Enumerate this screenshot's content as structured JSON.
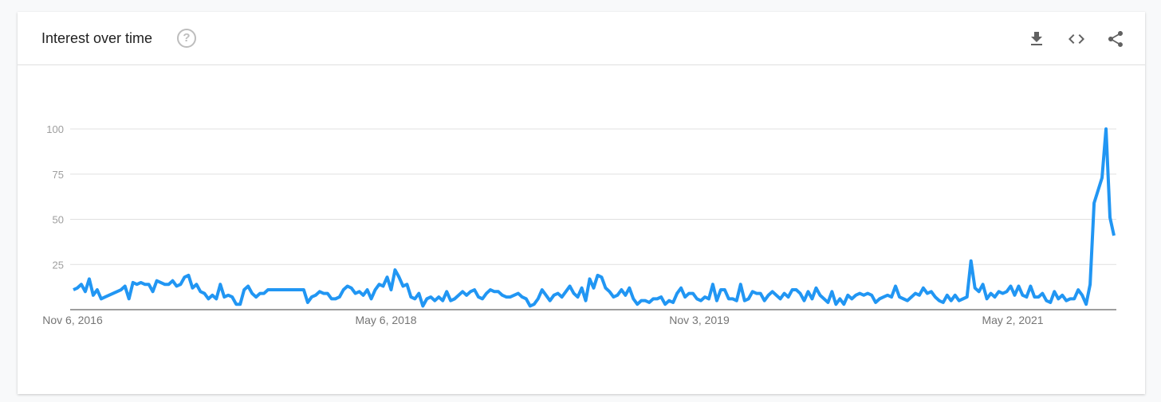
{
  "header": {
    "title": "Interest over time",
    "help_icon": "help-circle-icon",
    "actions": [
      {
        "name": "download-button",
        "icon": "download-icon"
      },
      {
        "name": "embed-button",
        "icon": "code-icon"
      },
      {
        "name": "share-button",
        "icon": "share-icon"
      }
    ]
  },
  "colors": {
    "line": "#2196f3",
    "grid": "#e0e0e0",
    "axis": "#9e9e9e"
  },
  "chart_data": {
    "type": "line",
    "title": "",
    "xlabel": "",
    "ylabel": "",
    "ylim": [
      0,
      100
    ],
    "yticks": [
      0,
      25,
      50,
      75,
      100
    ],
    "ytick_labels": [
      "25",
      "50",
      "75",
      "100"
    ],
    "xtick_labels": [
      "Nov 6, 2016",
      "May 6, 2018",
      "Nov 3, 2019",
      "May 2, 2021"
    ],
    "grid": true,
    "frequency": "weekly",
    "start": "Nov 6, 2016",
    "series": [
      {
        "values": [
          11,
          12,
          14,
          10,
          17,
          8,
          11,
          6,
          7,
          8,
          9,
          10,
          11,
          13,
          6,
          15,
          14,
          15,
          14,
          14,
          10,
          16,
          15,
          14,
          14,
          16,
          13,
          14,
          18,
          19,
          12,
          14,
          10,
          9,
          6,
          8,
          6,
          14,
          7,
          8,
          7,
          3,
          3,
          11,
          13,
          9,
          7,
          9,
          9,
          11,
          11,
          11,
          11,
          11,
          11,
          11,
          11,
          11,
          11,
          4,
          7,
          8,
          10,
          9,
          9,
          6,
          6,
          7,
          11,
          13,
          12,
          9,
          10,
          8,
          11,
          6,
          11,
          14,
          13,
          18,
          11,
          22,
          18,
          13,
          14,
          7,
          6,
          9,
          2,
          6,
          7,
          5,
          7,
          5,
          10,
          5,
          6,
          8,
          10,
          8,
          10,
          11,
          7,
          6,
          9,
          11,
          10,
          10,
          8,
          7,
          7,
          8,
          9,
          7,
          6,
          2,
          3,
          6,
          11,
          8,
          5,
          8,
          9,
          7,
          10,
          13,
          9,
          7,
          12,
          5,
          17,
          12,
          19,
          18,
          12,
          10,
          7,
          8,
          11,
          8,
          12,
          6,
          3,
          5,
          5,
          4,
          6,
          6,
          7,
          3,
          5,
          4,
          9,
          12,
          7,
          9,
          9,
          6,
          5,
          7,
          6,
          14,
          5,
          11,
          11,
          6,
          6,
          5,
          14,
          5,
          6,
          10,
          9,
          9,
          5,
          8,
          10,
          8,
          6,
          9,
          7,
          11,
          11,
          9,
          5,
          10,
          6,
          12,
          8,
          6,
          4,
          10,
          3,
          6,
          3,
          8,
          6,
          8,
          9,
          8,
          9,
          8,
          4,
          6,
          7,
          8,
          7,
          13,
          7,
          6,
          5,
          7,
          9,
          8,
          12,
          9,
          10,
          7,
          5,
          4,
          8,
          5,
          8,
          5,
          6,
          7,
          27,
          12,
          10,
          14,
          6,
          9,
          7,
          10,
          9,
          10,
          13,
          8,
          13,
          8,
          7,
          13,
          7,
          7,
          9,
          5,
          4,
          10,
          6,
          8,
          5,
          6,
          6,
          11,
          8,
          3,
          14,
          59,
          66,
          73,
          100,
          51,
          41
        ]
      }
    ]
  }
}
